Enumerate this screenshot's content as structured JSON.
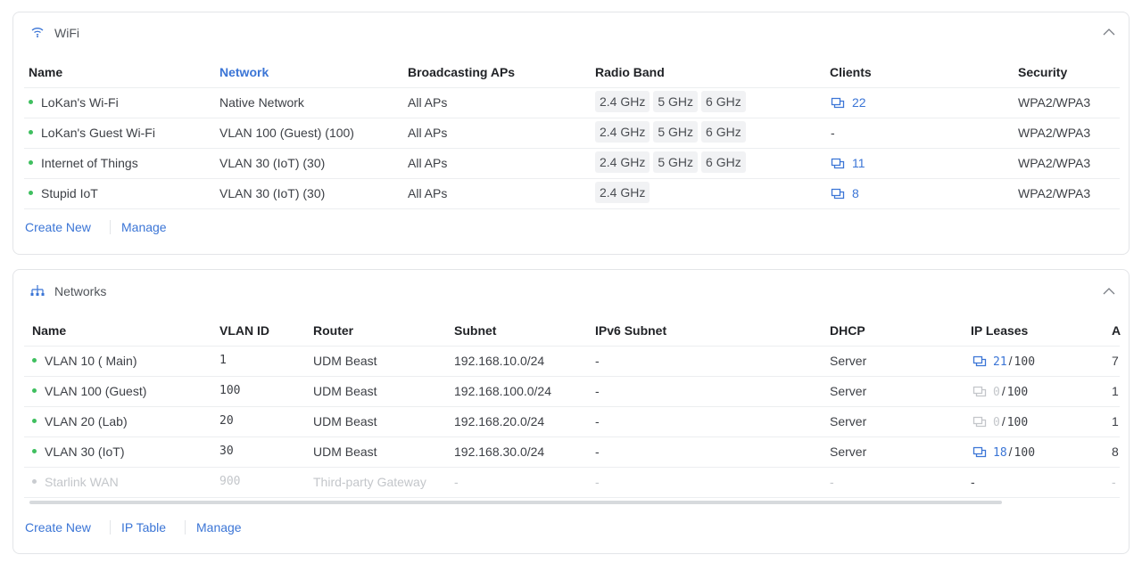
{
  "wifi": {
    "title": "WiFi",
    "columns": [
      "Name",
      "Network",
      "Broadcasting APs",
      "Radio Band",
      "Clients",
      "Security"
    ],
    "sorted_column": 1,
    "rows": [
      {
        "name": "LoKan's Wi-Fi",
        "network": "Native Network",
        "aps": "All APs",
        "bands": [
          "2.4 GHz",
          "5 GHz",
          "6 GHz"
        ],
        "clients": "22",
        "security": "WPA2/WPA3"
      },
      {
        "name": "LoKan's Guest Wi-Fi",
        "network": "VLAN 100 (Guest) (100)",
        "aps": "All APs",
        "bands": [
          "2.4 GHz",
          "5 GHz",
          "6 GHz"
        ],
        "clients": "-",
        "security": "WPA2/WPA3"
      },
      {
        "name": "Internet of Things",
        "network": "VLAN 30 (IoT) (30)",
        "aps": "All APs",
        "bands": [
          "2.4 GHz",
          "5 GHz",
          "6 GHz"
        ],
        "clients": "11",
        "security": "WPA2/WPA3"
      },
      {
        "name": "Stupid IoT",
        "network": "VLAN 30 (IoT) (30)",
        "aps": "All APs",
        "bands": [
          "2.4 GHz"
        ],
        "clients": "8",
        "security": "WPA2/WPA3"
      }
    ],
    "actions": [
      "Create New",
      "Manage"
    ]
  },
  "networks": {
    "title": "Networks",
    "columns": [
      "Name",
      "VLAN ID",
      "Router",
      "Subnet",
      "IPv6 Subnet",
      "DHCP",
      "IP Leases",
      "A"
    ],
    "lease_separator": "/",
    "rows": [
      {
        "name": "VLAN 10 ( Main)",
        "vlan_id": "1",
        "router": "UDM Beast",
        "subnet": "192.168.10.0/24",
        "ipv6_subnet": "-",
        "dhcp": "Server",
        "leases": {
          "used": "21",
          "total": "100",
          "active": true
        },
        "extra": "7",
        "enabled": true
      },
      {
        "name": "VLAN 100 (Guest)",
        "vlan_id": "100",
        "router": "UDM Beast",
        "subnet": "192.168.100.0/24",
        "ipv6_subnet": "-",
        "dhcp": "Server",
        "leases": {
          "used": "0",
          "total": "100",
          "active": false
        },
        "extra": "1",
        "enabled": true
      },
      {
        "name": "VLAN 20 (Lab)",
        "vlan_id": "20",
        "router": "UDM Beast",
        "subnet": "192.168.20.0/24",
        "ipv6_subnet": "-",
        "dhcp": "Server",
        "leases": {
          "used": "0",
          "total": "100",
          "active": false
        },
        "extra": "1",
        "enabled": true
      },
      {
        "name": "VLAN 30 (IoT)",
        "vlan_id": "30",
        "router": "UDM Beast",
        "subnet": "192.168.30.0/24",
        "ipv6_subnet": "-",
        "dhcp": "Server",
        "leases": {
          "used": "18",
          "total": "100",
          "active": true
        },
        "extra": "8",
        "enabled": true
      },
      {
        "name": "Starlink WAN",
        "vlan_id": "900",
        "router": "Third-party Gateway",
        "subnet": "-",
        "ipv6_subnet": "-",
        "dhcp": "-",
        "leases": "-",
        "extra": "-",
        "enabled": false
      }
    ],
    "actions": [
      "Create New",
      "IP Table",
      "Manage"
    ]
  }
}
